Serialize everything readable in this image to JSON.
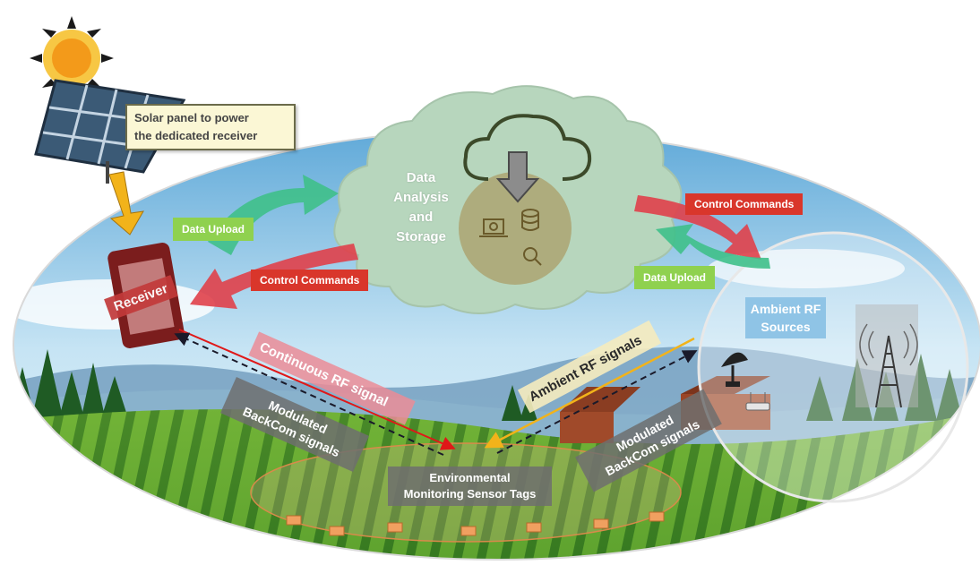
{
  "labels": {
    "solar_panel": [
      "Solar panel to power",
      "the dedicated receiver"
    ],
    "cloud": [
      "Data",
      "Analysis",
      "and",
      "Storage"
    ],
    "data_upload_left": "Data Upload",
    "data_upload_right": "Data Upload",
    "control_commands_left": "Control Commands",
    "control_commands_right": "Control Commands",
    "receiver": "Receiver",
    "ambient_rf_sources": [
      "Ambient RF",
      "Sources"
    ],
    "continuous_rf": "Continuous RF signal",
    "ambient_rf_signals": "Ambient RF signals",
    "modulated_left": [
      "Modulated",
      "BackCom signals"
    ],
    "modulated_right": [
      "Modulated",
      "BackCom signals"
    ],
    "sensor_tags": [
      "Environmental",
      "Monitoring Sensor Tags"
    ]
  },
  "colors": {
    "sky": "#c9e7f5",
    "cloud": "#b9d8c0",
    "field": "#5fa135",
    "green_arrow": "#2fb879",
    "red_arrow": "#e23b3b",
    "receiver": "#7b1d1d",
    "yellow_arrow": "#f2b31a"
  }
}
